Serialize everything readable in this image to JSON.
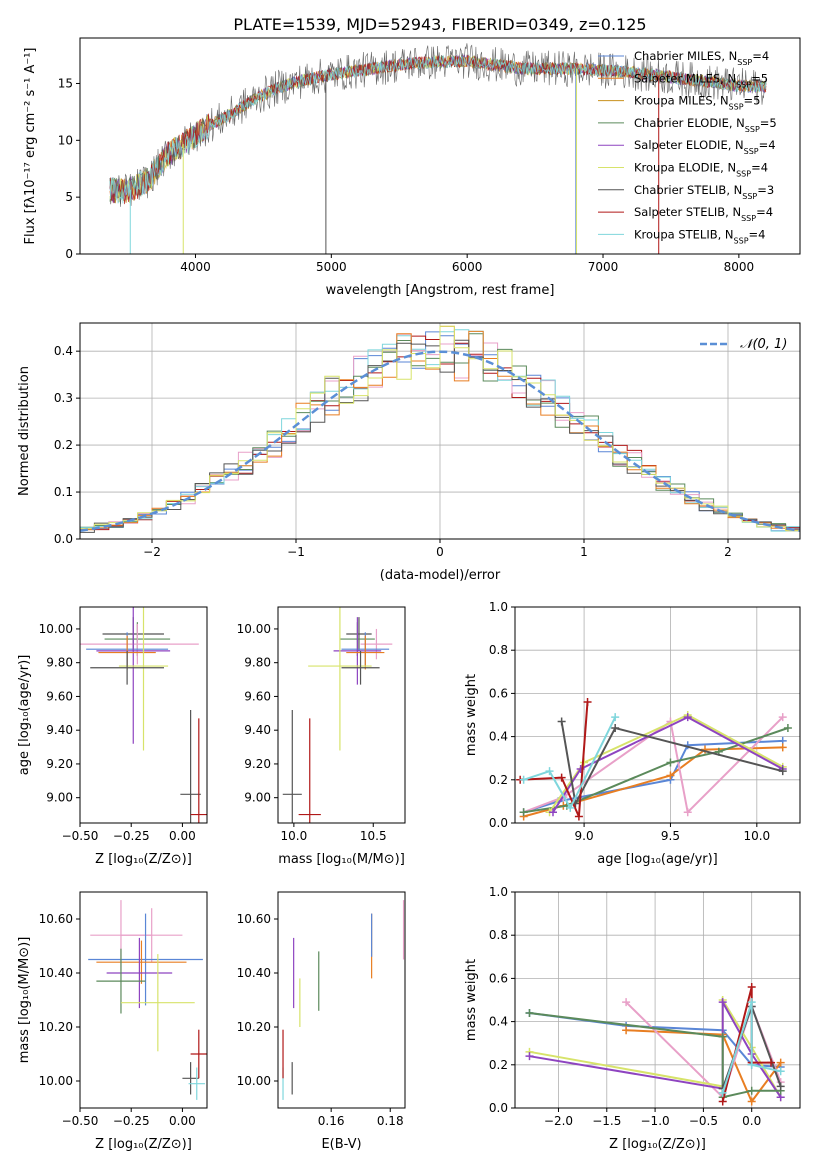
{
  "figure_title": "PLATE=1539, MJD=52943, FIBERID=0349, z=0.125",
  "chart_data": [
    {
      "id": "spectrum",
      "type": "line",
      "xlabel": "wavelength [Angstrom, rest frame]",
      "ylabel": "Flux [fλ10⁻¹⁷ erg cm⁻² s⁻¹ A⁻¹]",
      "xlim": [
        3150,
        8450
      ],
      "ylim": [
        0,
        19
      ],
      "xticks": [
        4000,
        5000,
        6000,
        7000,
        8000
      ],
      "yticks": [
        0,
        5,
        10,
        15
      ],
      "continuum": {
        "x": [
          3370,
          3500,
          3650,
          3800,
          3950,
          4100,
          4250,
          4400,
          4600,
          4800,
          5000,
          5300,
          5600,
          6000,
          6400,
          6800,
          7200,
          7600,
          8000,
          8200
        ],
        "y": [
          5.6,
          5.5,
          6.5,
          8.8,
          10.0,
          11.3,
          12.2,
          13.4,
          14.6,
          15.3,
          15.8,
          16.3,
          16.8,
          17.0,
          16.3,
          16.3,
          16.0,
          15.4,
          14.8,
          14.7
        ]
      },
      "spikes": [
        {
          "x": 3520,
          "y": 0,
          "series": 8
        },
        {
          "x": 3910,
          "y": 0,
          "series": 5
        },
        {
          "x": 4960,
          "y": 0,
          "series": 6
        },
        {
          "x": 6800,
          "y": 0,
          "series": 0
        },
        {
          "x": 6805,
          "y": 0,
          "series": 5
        },
        {
          "x": 7410,
          "y": 0,
          "series": 7
        }
      ],
      "series": [
        {
          "name": "Chabrier MILES, N_SSP=4",
          "color": "#5a86d6"
        },
        {
          "name": "Salpeter MILES, N_SSP=5",
          "color": "#e87e22"
        },
        {
          "name": "Kroupa MILES, N_SSP=5",
          "color": "#c8901c"
        },
        {
          "name": "Chabrier ELODIE, N_SSP=5",
          "color": "#5b8a5b"
        },
        {
          "name": "Salpeter ELODIE, N_SSP=4",
          "color": "#8e44c0"
        },
        {
          "name": "Kroupa ELODIE, N_SSP=4",
          "color": "#d7e36a"
        },
        {
          "name": "Chabrier STELIB, N_SSP=3",
          "color": "#555555"
        },
        {
          "name": "Salpeter STELIB, N_SSP=4",
          "color": "#b01818"
        },
        {
          "name": "Kroupa STELIB, N_SSP=4",
          "color": "#7fd6dc"
        }
      ]
    },
    {
      "id": "residuals",
      "type": "step",
      "xlabel": "(data-model)/error",
      "ylabel": "Normed distribution",
      "xlim": [
        -2.5,
        2.5
      ],
      "ylim": [
        0,
        0.46
      ],
      "xticks": [
        -2,
        -1,
        0,
        1,
        2
      ],
      "yticks": [
        0.0,
        0.1,
        0.2,
        0.3,
        0.4
      ],
      "grid": true,
      "legend": "$\\mathcal{N}(0,1)$",
      "gaussian_color": "#5b8fd6",
      "bin_width": 0.1,
      "hist_colors": [
        "#5a86d6",
        "#b01818",
        "#e8a0c8",
        "#5b8a5b",
        "#7fd6dc",
        "#e87e22",
        "#555555",
        "#d7e36a"
      ]
    },
    {
      "id": "age_vs_Z",
      "type": "errorbar",
      "xlabel": "Z [log₁₀(Z/Z⊙)]",
      "ylabel": "age  [log₁₀(age/yr)]",
      "xlim": [
        -0.5,
        0.12
      ],
      "ylim": [
        8.85,
        10.13
      ],
      "xticks": [
        -0.5,
        -0.25,
        0.0
      ],
      "yticks": [
        9.0,
        9.2,
        9.4,
        9.6,
        9.8,
        10.0
      ],
      "points": [
        {
          "x": -0.24,
          "y": 9.97,
          "ex": 0.15,
          "ey": 0.1,
          "color": "#555555"
        },
        {
          "x": -0.22,
          "y": 9.94,
          "ex": 0.16,
          "ey": 0.1,
          "color": "#5b8a5b"
        },
        {
          "x": -0.22,
          "y": 9.91,
          "ex": 0.3,
          "ey": 0.12,
          "color": "#e8a0c8"
        },
        {
          "x": -0.27,
          "y": 9.88,
          "ex": 0.2,
          "ey": 0.1,
          "color": "#5a86d6"
        },
        {
          "x": -0.24,
          "y": 9.87,
          "ex": 0.18,
          "ey": 0.55,
          "color": "#8e44c0"
        },
        {
          "x": -0.27,
          "y": 9.86,
          "ex": 0.14,
          "ey": 0.1,
          "color": "#e87e22"
        },
        {
          "x": -0.19,
          "y": 9.78,
          "ex": 0.12,
          "ey": 0.5,
          "color": "#d7e36a"
        },
        {
          "x": -0.27,
          "y": 9.77,
          "ex": 0.18,
          "ey": 0.1,
          "color": "#555555"
        },
        {
          "x": 0.04,
          "y": 9.02,
          "ex": 0.05,
          "ey": 0.5,
          "color": "#555555"
        },
        {
          "x": 0.08,
          "y": 8.9,
          "ex": 0.04,
          "ey": 0.57,
          "color": "#b01818"
        }
      ]
    },
    {
      "id": "age_vs_mass",
      "type": "errorbar",
      "xlabel": "mass [log₁₀(M/M⊙)]",
      "ylabel": "",
      "xlim": [
        9.9,
        10.7
      ],
      "ylim": [
        8.85,
        10.13
      ],
      "xticks": [
        10.0,
        10.5
      ],
      "yticks": [
        9.0,
        9.2,
        9.4,
        9.6,
        9.8,
        10.0
      ],
      "points": [
        {
          "x": 10.41,
          "y": 9.97,
          "ex": 0.08,
          "ey": 0.1,
          "color": "#555555"
        },
        {
          "x": 10.4,
          "y": 9.94,
          "ex": 0.11,
          "ey": 0.1,
          "color": "#5b8a5b"
        },
        {
          "x": 10.52,
          "y": 9.91,
          "ex": 0.1,
          "ey": 0.09,
          "color": "#e8a0c8"
        },
        {
          "x": 10.45,
          "y": 9.88,
          "ex": 0.15,
          "ey": 0.1,
          "color": "#5a86d6"
        },
        {
          "x": 10.4,
          "y": 9.87,
          "ex": 0.15,
          "ey": 0.2,
          "color": "#8e44c0"
        },
        {
          "x": 10.45,
          "y": 9.86,
          "ex": 0.12,
          "ey": 0.1,
          "color": "#e87e22"
        },
        {
          "x": 10.29,
          "y": 9.78,
          "ex": 0.2,
          "ey": 0.5,
          "color": "#d7e36a"
        },
        {
          "x": 10.42,
          "y": 9.77,
          "ex": 0.12,
          "ey": 0.1,
          "color": "#555555"
        },
        {
          "x": 9.99,
          "y": 9.02,
          "ex": 0.06,
          "ey": 0.5,
          "color": "#555555"
        },
        {
          "x": 10.1,
          "y": 8.9,
          "ex": 0.07,
          "ey": 0.57,
          "color": "#b01818"
        }
      ]
    },
    {
      "id": "weight_vs_age",
      "type": "line",
      "xlabel": "age  [log₁₀(age/yr)]",
      "ylabel": "mass weight",
      "xlim": [
        8.6,
        10.25
      ],
      "ylim": [
        0,
        1.0
      ],
      "xticks": [
        9.0,
        9.5,
        10.0
      ],
      "yticks": [
        0.0,
        0.2,
        0.4,
        0.6,
        0.8,
        1.0
      ],
      "grid": true,
      "series": [
        {
          "color": "#5a86d6",
          "x": [
            8.65,
            8.85,
            9.5,
            9.6,
            10.15
          ],
          "y": [
            0.05,
            0.1,
            0.2,
            0.36,
            0.38
          ]
        },
        {
          "color": "#e87e22",
          "x": [
            8.65,
            8.88,
            9.5,
            9.7,
            10.15
          ],
          "y": [
            0.03,
            0.08,
            0.22,
            0.34,
            0.35
          ]
        },
        {
          "color": "#e8a0c8",
          "x": [
            8.65,
            8.88,
            9.5,
            9.6,
            10.15
          ],
          "y": [
            0.05,
            0.12,
            0.47,
            0.05,
            0.49
          ]
        },
        {
          "color": "#5b8a5b",
          "x": [
            8.65,
            8.9,
            9.5,
            9.78,
            10.18
          ],
          "y": [
            0.05,
            0.08,
            0.28,
            0.33,
            0.44
          ]
        },
        {
          "color": "#d7e36a",
          "x": [
            8.8,
            9.0,
            9.6,
            10.15
          ],
          "y": [
            0.05,
            0.28,
            0.5,
            0.26
          ]
        },
        {
          "color": "#8e44c0",
          "x": [
            8.82,
            8.98,
            9.6,
            10.15
          ],
          "y": [
            0.05,
            0.25,
            0.49,
            0.25
          ]
        },
        {
          "color": "#555555",
          "x": [
            8.87,
            8.95,
            9.18,
            10.15
          ],
          "y": [
            0.47,
            0.09,
            0.44,
            0.24
          ]
        },
        {
          "color": "#b01818",
          "x": [
            8.63,
            8.87,
            8.97,
            9.02
          ],
          "y": [
            0.2,
            0.21,
            0.03,
            0.56
          ]
        },
        {
          "color": "#7fd6dc",
          "x": [
            8.65,
            8.8,
            8.92,
            9.18
          ],
          "y": [
            0.2,
            0.24,
            0.07,
            0.49
          ]
        }
      ]
    },
    {
      "id": "mass_vs_Z",
      "type": "errorbar",
      "xlabel": "Z [log₁₀(Z/Z⊙)]",
      "ylabel": "mass [log₁₀(M/M⊙)]",
      "xlim": [
        -0.5,
        0.12
      ],
      "ylim": [
        9.9,
        10.7
      ],
      "xticks": [
        -0.5,
        -0.25,
        0.0
      ],
      "yticks": [
        10.0,
        10.2,
        10.4,
        10.6
      ],
      "points": [
        {
          "x": -0.15,
          "y": 10.54,
          "ex": 0.15,
          "ey": 0.1,
          "color": "#e8a0c8"
        },
        {
          "x": -0.3,
          "y": 10.54,
          "ex": 0.15,
          "ey": 0.13,
          "color": "#e8a0c8"
        },
        {
          "x": -0.18,
          "y": 10.45,
          "ex": 0.28,
          "ey": 0.17,
          "color": "#5a86d6"
        },
        {
          "x": -0.2,
          "y": 10.44,
          "ex": 0.22,
          "ey": 0.08,
          "color": "#e87e22"
        },
        {
          "x": -0.21,
          "y": 10.4,
          "ex": 0.16,
          "ey": 0.13,
          "color": "#8e44c0"
        },
        {
          "x": -0.3,
          "y": 10.37,
          "ex": 0.12,
          "ey": 0.12,
          "color": "#5b8a5b"
        },
        {
          "x": -0.12,
          "y": 10.29,
          "ex": 0.18,
          "ey": 0.18,
          "color": "#d7e36a"
        },
        {
          "x": 0.04,
          "y": 10.01,
          "ex": 0.04,
          "ey": 0.06,
          "color": "#555555"
        },
        {
          "x": 0.08,
          "y": 10.1,
          "ex": 0.04,
          "ey": 0.09,
          "color": "#b01818"
        },
        {
          "x": 0.07,
          "y": 9.99,
          "ex": 0.04,
          "ey": 0.06,
          "color": "#7fd6dc"
        }
      ]
    },
    {
      "id": "mass_vs_ebv",
      "type": "errorbar",
      "xlabel": "E(B-V)",
      "ylabel": "",
      "xlim": [
        0.142,
        0.185
      ],
      "ylim": [
        9.9,
        10.7
      ],
      "xticks": [
        0.16,
        0.18
      ],
      "xtick_labels": [
        "0.16",
        "0.18"
      ],
      "yticks": [
        10.0,
        10.2,
        10.4,
        10.6
      ],
      "points": [
        {
          "x": 0.1437,
          "y": 9.99,
          "ey": 0.06,
          "color": "#7fd6dc"
        },
        {
          "x": 0.1437,
          "y": 10.1,
          "ey": 0.09,
          "color": "#b01818"
        },
        {
          "x": 0.1468,
          "y": 10.01,
          "ey": 0.06,
          "color": "#555555"
        },
        {
          "x": 0.1473,
          "y": 10.4,
          "ey": 0.13,
          "color": "#8e44c0"
        },
        {
          "x": 0.1494,
          "y": 10.29,
          "ey": 0.09,
          "color": "#d7e36a"
        },
        {
          "x": 0.1558,
          "y": 10.37,
          "ey": 0.11,
          "color": "#5b8a5b"
        },
        {
          "x": 0.1737,
          "y": 10.5,
          "ey": 0.12,
          "color": "#e87e22"
        },
        {
          "x": 0.1737,
          "y": 10.54,
          "ey": 0.08,
          "color": "#5a86d6"
        },
        {
          "x": 0.1845,
          "y": 10.56,
          "ey": 0.11,
          "color": "#e8a0c8"
        }
      ]
    },
    {
      "id": "weight_vs_Z",
      "type": "line",
      "xlabel": "Z [log₁₀(Z/Z⊙)]",
      "ylabel": "mass weight",
      "xlim": [
        -2.45,
        0.5
      ],
      "ylim": [
        0,
        1.0
      ],
      "xticks": [
        -2.0,
        -1.5,
        -1.0,
        -0.5,
        0.0
      ],
      "yticks": [
        0.0,
        0.2,
        0.4,
        0.6,
        0.8,
        1.0
      ],
      "grid": true,
      "series": [
        {
          "color": "#5a86d6",
          "x": [
            -2.3,
            -1.3,
            -0.3,
            0.0,
            0.3
          ],
          "y": [
            0.44,
            0.38,
            0.36,
            0.2,
            0.19
          ]
        },
        {
          "color": "#e87e22",
          "x": [
            -1.3,
            -0.3,
            0.0,
            0.3
          ],
          "y": [
            0.36,
            0.34,
            0.03,
            0.21
          ]
        },
        {
          "color": "#e8a0c8",
          "x": [
            -1.3,
            -0.3,
            0.0,
            0.3
          ],
          "y": [
            0.49,
            0.05,
            0.47,
            0.12
          ]
        },
        {
          "color": "#d7e36a",
          "x": [
            -2.3,
            -0.3,
            -0.3,
            0.0,
            0.3
          ],
          "y": [
            0.26,
            0.1,
            0.5,
            0.28,
            0.05
          ]
        },
        {
          "color": "#8e44c0",
          "x": [
            -2.3,
            -0.3,
            -0.3,
            0.0,
            0.3
          ],
          "y": [
            0.24,
            0.09,
            0.49,
            0.25,
            0.05
          ]
        },
        {
          "color": "#5b8a5b",
          "x": [
            -2.3,
            -0.3,
            -0.3,
            0.0,
            0.3
          ],
          "y": [
            0.44,
            0.33,
            0.05,
            0.08,
            0.08
          ]
        },
        {
          "color": "#555555",
          "x": [
            -0.3,
            0.0,
            0.3
          ],
          "y": [
            0.09,
            0.47,
            0.1
          ]
        },
        {
          "color": "#b01818",
          "x": [
            -0.3,
            0.0,
            0.0,
            0.2
          ],
          "y": [
            0.03,
            0.56,
            0.21,
            0.21
          ]
        },
        {
          "color": "#7fd6dc",
          "x": [
            -0.3,
            0.0,
            0.0,
            0.3
          ],
          "y": [
            0.07,
            0.49,
            0.2,
            0.17
          ]
        }
      ]
    }
  ]
}
